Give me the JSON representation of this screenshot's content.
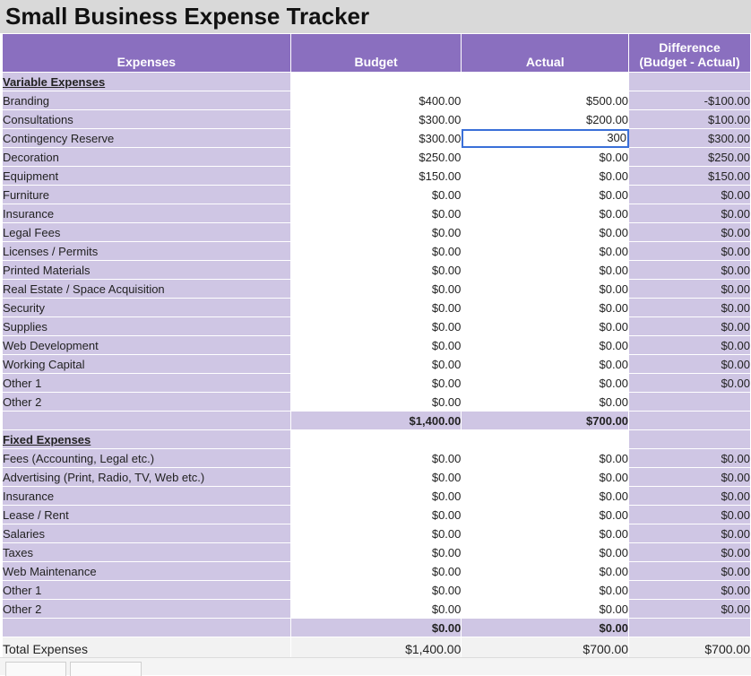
{
  "title": "Small Business Expense Tracker",
  "headers": [
    "Expenses",
    "Budget",
    "Actual",
    "Difference\n(Budget - Actual)"
  ],
  "variable": {
    "section_label": "Variable Expenses",
    "rows": [
      {
        "label": "Branding",
        "budget": "$400.00",
        "actual": "$500.00",
        "diff": "-$100.00"
      },
      {
        "label": "Consultations",
        "budget": "$300.00",
        "actual": "$200.00",
        "diff": "$100.00"
      },
      {
        "label": "Contingency Reserve",
        "budget": "$300.00",
        "actual": "300",
        "diff": "$300.00",
        "editing": true
      },
      {
        "label": "Decoration",
        "budget": "$250.00",
        "actual": "$0.00",
        "diff": "$250.00"
      },
      {
        "label": "Equipment",
        "budget": "$150.00",
        "actual": "$0.00",
        "diff": "$150.00"
      },
      {
        "label": "Furniture",
        "budget": "$0.00",
        "actual": "$0.00",
        "diff": "$0.00"
      },
      {
        "label": "Insurance",
        "budget": "$0.00",
        "actual": "$0.00",
        "diff": "$0.00"
      },
      {
        "label": "Legal Fees",
        "budget": "$0.00",
        "actual": "$0.00",
        "diff": "$0.00"
      },
      {
        "label": "Licenses / Permits",
        "budget": "$0.00",
        "actual": "$0.00",
        "diff": "$0.00"
      },
      {
        "label": "Printed Materials",
        "budget": "$0.00",
        "actual": "$0.00",
        "diff": "$0.00"
      },
      {
        "label": "Real Estate / Space Acquisition",
        "budget": "$0.00",
        "actual": "$0.00",
        "diff": "$0.00"
      },
      {
        "label": "Security",
        "budget": "$0.00",
        "actual": "$0.00",
        "diff": "$0.00"
      },
      {
        "label": "Supplies",
        "budget": "$0.00",
        "actual": "$0.00",
        "diff": "$0.00"
      },
      {
        "label": "Web Development",
        "budget": "$0.00",
        "actual": "$0.00",
        "diff": "$0.00"
      },
      {
        "label": "Working Capital",
        "budget": "$0.00",
        "actual": "$0.00",
        "diff": "$0.00"
      },
      {
        "label": "Other 1",
        "budget": "$0.00",
        "actual": "$0.00",
        "diff": "$0.00"
      },
      {
        "label": "Other 2",
        "budget": "$0.00",
        "actual": "$0.00",
        "diff": ""
      }
    ],
    "subtotal_budget": "$1,400.00",
    "subtotal_actual": "$700.00"
  },
  "fixed": {
    "section_label": "Fixed Expenses",
    "rows": [
      {
        "label": "Fees (Accounting, Legal etc.)",
        "budget": "$0.00",
        "actual": "$0.00",
        "diff": "$0.00"
      },
      {
        "label": "Advertising (Print, Radio, TV, Web etc.)",
        "budget": "$0.00",
        "actual": "$0.00",
        "diff": "$0.00"
      },
      {
        "label": "Insurance",
        "budget": "$0.00",
        "actual": "$0.00",
        "diff": "$0.00"
      },
      {
        "label": "Lease / Rent",
        "budget": "$0.00",
        "actual": "$0.00",
        "diff": "$0.00"
      },
      {
        "label": "Salaries",
        "budget": "$0.00",
        "actual": "$0.00",
        "diff": "$0.00"
      },
      {
        "label": "Taxes",
        "budget": "$0.00",
        "actual": "$0.00",
        "diff": "$0.00"
      },
      {
        "label": "Web Maintenance",
        "budget": "$0.00",
        "actual": "$0.00",
        "diff": "$0.00"
      },
      {
        "label": "Other 1",
        "budget": "$0.00",
        "actual": "$0.00",
        "diff": "$0.00"
      },
      {
        "label": "Other 2",
        "budget": "$0.00",
        "actual": "$0.00",
        "diff": "$0.00"
      }
    ],
    "subtotal_budget": "$0.00",
    "subtotal_actual": "$0.00"
  },
  "total": {
    "label": "Total Expenses",
    "budget": "$1,400.00",
    "actual": "$700.00",
    "diff": "$700.00"
  }
}
